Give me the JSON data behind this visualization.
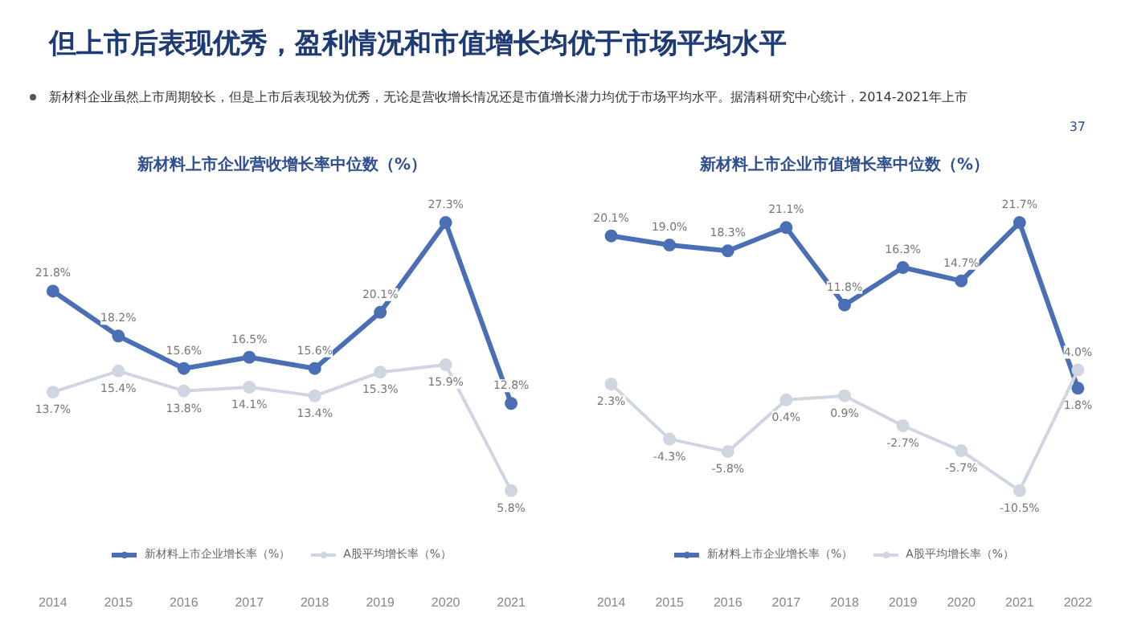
{
  "chart_data": [
    {
      "type": "other",
      "title": "但上市后表现优秀，盈利情况和市值增长均优于市场平均水平",
      "subtitle": "新材料企业虽然上市周期较长，但是上市后表现较为优秀，无论是营收增长情况还是市值增长潜力均优于市场平均水平。据清科研究中心统计，2014-2021年上市",
      "annotations": [
        "37"
      ]
    },
    {
      "type": "line",
      "title": "新材料上市企业营收增长率中位数（%）",
      "categories": [
        "2014",
        "2015",
        "2016",
        "2017",
        "2018",
        "2019",
        "2020",
        "2021"
      ],
      "tick_labels": "x",
      "grid": false,
      "legend": "bottom",
      "marker": "circle",
      "series": [
        {
          "name": "新材料上市企业增长率（%）",
          "color": "#4a6fb5",
          "values": [
            21.8,
            18.2,
            15.6,
            16.5,
            15.6,
            20.1,
            27.3,
            12.8
          ],
          "value_labels": [
            "21.8%",
            "18.2%",
            "15.6%",
            "16.5%",
            "15.6%",
            "20.1%",
            "27.3%",
            "12.8%"
          ]
        },
        {
          "name": "A股平均增长率（%）",
          "color": "#cfd6e2",
          "values": [
            13.7,
            15.4,
            13.8,
            14.1,
            13.4,
            15.3,
            15.9,
            5.8
          ],
          "value_labels": [
            "13.7%",
            "15.4%",
            "13.8%",
            "14.1%",
            "13.4%",
            "15.3%",
            "15.9%",
            "5.8%"
          ]
        }
      ]
    },
    {
      "type": "line",
      "title": "新材料上市企业市值增长率中位数（%）",
      "categories": [
        "2014",
        "2015",
        "2016",
        "2017",
        "2018",
        "2019",
        "2020",
        "2021",
        "2022"
      ],
      "tick_labels": "x",
      "grid": false,
      "legend": "bottom",
      "marker": "circle",
      "series": [
        {
          "name": "新材料上市企业增长率（%）",
          "color": "#4a6fb5",
          "values": [
            20.1,
            19.0,
            18.3,
            21.1,
            11.8,
            16.3,
            14.7,
            21.7,
            1.8
          ],
          "value_labels": [
            "20.1%",
            "19.0%",
            "18.3%",
            "21.1%",
            "11.8%",
            "16.3%",
            "14.7%",
            "21.7%",
            "1.8%"
          ]
        },
        {
          "name": "A股平均增长率（%）",
          "color": "#cfd6e2",
          "values": [
            2.3,
            -4.3,
            -5.8,
            0.4,
            0.9,
            -2.7,
            -5.7,
            -10.5,
            4.0
          ],
          "value_labels": [
            "2.3%",
            "-4.3%",
            "-5.8%",
            "0.4%",
            "0.9%",
            "-2.7%",
            "-5.7%",
            "-10.5%",
            "4.0%"
          ]
        }
      ]
    }
  ]
}
